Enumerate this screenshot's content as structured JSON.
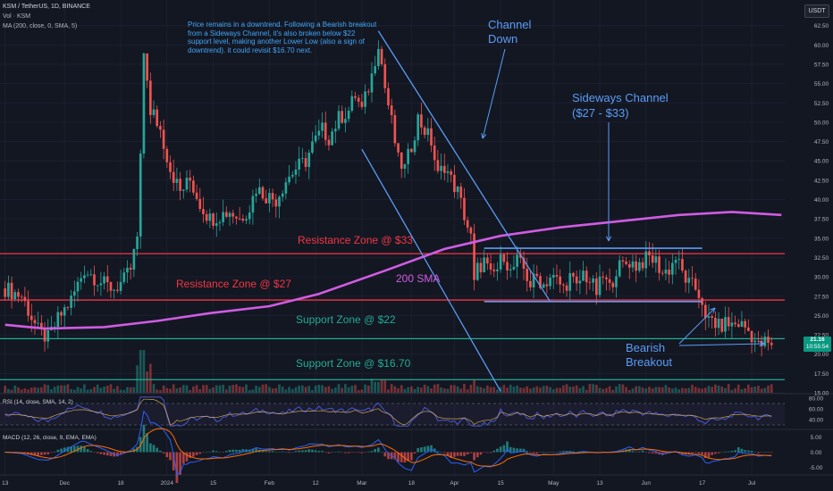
{
  "header": {
    "title": "KSM / TetherUS, 1D, BINANCE",
    "vol": "Vol · KSM",
    "ma": "MA (200, close, 0, SMA, 5)",
    "unit": "USDT"
  },
  "note": "Price remains in a downtrend. Following a Bearish breakout from a Sideways Channel, it's also broken below $22 support level, making another Lower Low (also a sign of downtrend). it could revisit $16.70 next.",
  "labels": {
    "channel_down": "Channel Down",
    "sideways": "Sideways Channel ($27 - $33)",
    "res33": "Resistance Zone @ $33",
    "res27": "Resistance Zone @ $27",
    "sma": "200 SMA",
    "sup22": "Support Zone @ $22",
    "sup1670": "Support Zone @ $16.70",
    "bearish": "Bearish Breakout"
  },
  "colors": {
    "up": "#26a69a",
    "down": "#ef5350",
    "sma": "#d05ce3",
    "resistance": "#f23645",
    "support": "#22ab94",
    "annotation": "#5b9cf6",
    "rsi": "#7e57c2",
    "macd": "#2962ff",
    "signal": "#ff6d00"
  },
  "price_tag": {
    "price": "21.16",
    "countdown": "10:55:54"
  },
  "chart_data": {
    "type": "candlestick",
    "title": "KSM / TetherUS, 1D, BINANCE",
    "ylim": [
      15.0,
      63.5
    ],
    "y_ticks": [
      62.5,
      60.0,
      57.5,
      55.0,
      52.5,
      50.0,
      47.5,
      45.0,
      42.5,
      40.0,
      37.5,
      35.0,
      32.5,
      30.0,
      27.5,
      25.0,
      22.5,
      20.0,
      17.5,
      15.0
    ],
    "x_ticks": [
      "13",
      "Dec",
      "18",
      "2024",
      "15",
      "Feb",
      "12",
      "Mar",
      "18",
      "Apr",
      "15",
      "May",
      "13",
      "Jun",
      "17",
      "Jul"
    ],
    "x_tick_days": [
      0,
      18,
      35,
      49,
      63,
      80,
      94,
      108,
      123,
      136,
      150,
      166,
      180,
      194,
      211,
      226
    ],
    "series_close": [
      [
        0,
        28.5
      ],
      [
        5,
        27.5
      ],
      [
        10,
        23.0
      ],
      [
        13,
        22.0
      ],
      [
        16,
        24.5
      ],
      [
        20,
        27.0
      ],
      [
        24,
        31.0
      ],
      [
        27,
        30.0
      ],
      [
        30,
        29.0
      ],
      [
        33,
        28.5
      ],
      [
        36,
        29.5
      ],
      [
        38,
        31.0
      ],
      [
        40,
        35.0
      ],
      [
        41,
        45.0
      ],
      [
        42,
        59.0
      ],
      [
        43,
        56.0
      ],
      [
        44,
        50.5
      ],
      [
        45,
        51.0
      ],
      [
        47,
        49.0
      ],
      [
        50,
        44.0
      ],
      [
        53,
        41.0
      ],
      [
        56,
        42.5
      ],
      [
        59,
        39.5
      ],
      [
        62,
        37.5
      ],
      [
        65,
        38.0
      ],
      [
        68,
        38.5
      ],
      [
        71,
        37.5
      ],
      [
        74,
        39.0
      ],
      [
        76,
        41.5
      ],
      [
        79,
        40.5
      ],
      [
        82,
        40.0
      ],
      [
        85,
        42.5
      ],
      [
        88,
        44.0
      ],
      [
        91,
        45.0
      ],
      [
        93,
        47.0
      ],
      [
        96,
        49.0
      ],
      [
        98,
        48.0
      ],
      [
        101,
        50.5
      ],
      [
        104,
        51.5
      ],
      [
        106,
        53.5
      ],
      [
        108,
        51.5
      ],
      [
        111,
        56.0
      ],
      [
        113,
        60.5
      ],
      [
        115,
        54.5
      ],
      [
        117,
        50.0
      ],
      [
        119,
        45.0
      ],
      [
        121,
        44.0
      ],
      [
        123,
        47.0
      ],
      [
        125,
        50.5
      ],
      [
        127,
        49.0
      ],
      [
        129,
        47.5
      ],
      [
        131,
        43.0
      ],
      [
        133,
        44.5
      ],
      [
        135,
        42.5
      ],
      [
        137,
        41.0
      ],
      [
        139,
        38.0
      ],
      [
        141,
        35.0
      ],
      [
        142,
        29.0
      ],
      [
        143,
        31.0
      ],
      [
        145,
        32.0
      ],
      [
        147,
        30.0
      ],
      [
        149,
        31.0
      ],
      [
        151,
        33.0
      ],
      [
        153,
        30.5
      ],
      [
        155,
        32.0
      ],
      [
        157,
        31.0
      ],
      [
        159,
        29.0
      ],
      [
        161,
        30.0
      ],
      [
        163,
        29.0
      ],
      [
        165,
        30.0
      ],
      [
        167,
        29.5
      ],
      [
        169,
        28.5
      ],
      [
        171,
        30.0
      ],
      [
        173,
        28.5
      ],
      [
        175,
        30.5
      ],
      [
        177,
        29.5
      ],
      [
        179,
        28.0
      ],
      [
        181,
        30.0
      ],
      [
        183,
        28.5
      ],
      [
        185,
        31.0
      ],
      [
        187,
        31.5
      ],
      [
        189,
        32.0
      ],
      [
        191,
        31.5
      ],
      [
        193,
        32.0
      ],
      [
        195,
        32.5
      ],
      [
        197,
        32.0
      ],
      [
        199,
        30.5
      ],
      [
        201,
        31.0
      ],
      [
        203,
        32.5
      ],
      [
        205,
        30.5
      ],
      [
        207,
        29.0
      ],
      [
        209,
        28.5
      ],
      [
        211,
        27.0
      ],
      [
        212,
        24.0
      ],
      [
        214,
        24.5
      ],
      [
        216,
        23.5
      ],
      [
        218,
        24.0
      ],
      [
        220,
        23.8
      ],
      [
        222,
        24.0
      ],
      [
        224,
        23.5
      ],
      [
        226,
        22.5
      ],
      [
        228,
        21.0
      ],
      [
        230,
        21.5
      ],
      [
        232,
        21.16
      ]
    ],
    "sma200": [
      [
        0,
        23.8
      ],
      [
        12,
        23.3
      ],
      [
        30,
        23.5
      ],
      [
        46,
        24.3
      ],
      [
        62,
        25.3
      ],
      [
        80,
        26.2
      ],
      [
        95,
        27.8
      ],
      [
        115,
        30.8
      ],
      [
        133,
        33.6
      ],
      [
        150,
        35.3
      ],
      [
        168,
        36.4
      ],
      [
        186,
        37.2
      ],
      [
        204,
        38.0
      ],
      [
        220,
        38.4
      ],
      [
        235,
        38.0
      ]
    ],
    "horizontal_levels": [
      33.0,
      27.0,
      22.0,
      16.7
    ],
    "sideways_channel": [
      27.0,
      33.0
    ],
    "rsi": {
      "label": "RSI (14, close, SMA, 14, 2)",
      "ticks": [
        80.0,
        60.0,
        40.0
      ],
      "ylim": [
        25,
        85
      ],
      "upper": 70,
      "lower": 30
    },
    "macd": {
      "label": "MACD (12, 26, close, 9, EMA, EMA)",
      "ticks": [
        5.0,
        0.0,
        -5.0
      ],
      "ylim": [
        -7,
        7
      ]
    }
  }
}
